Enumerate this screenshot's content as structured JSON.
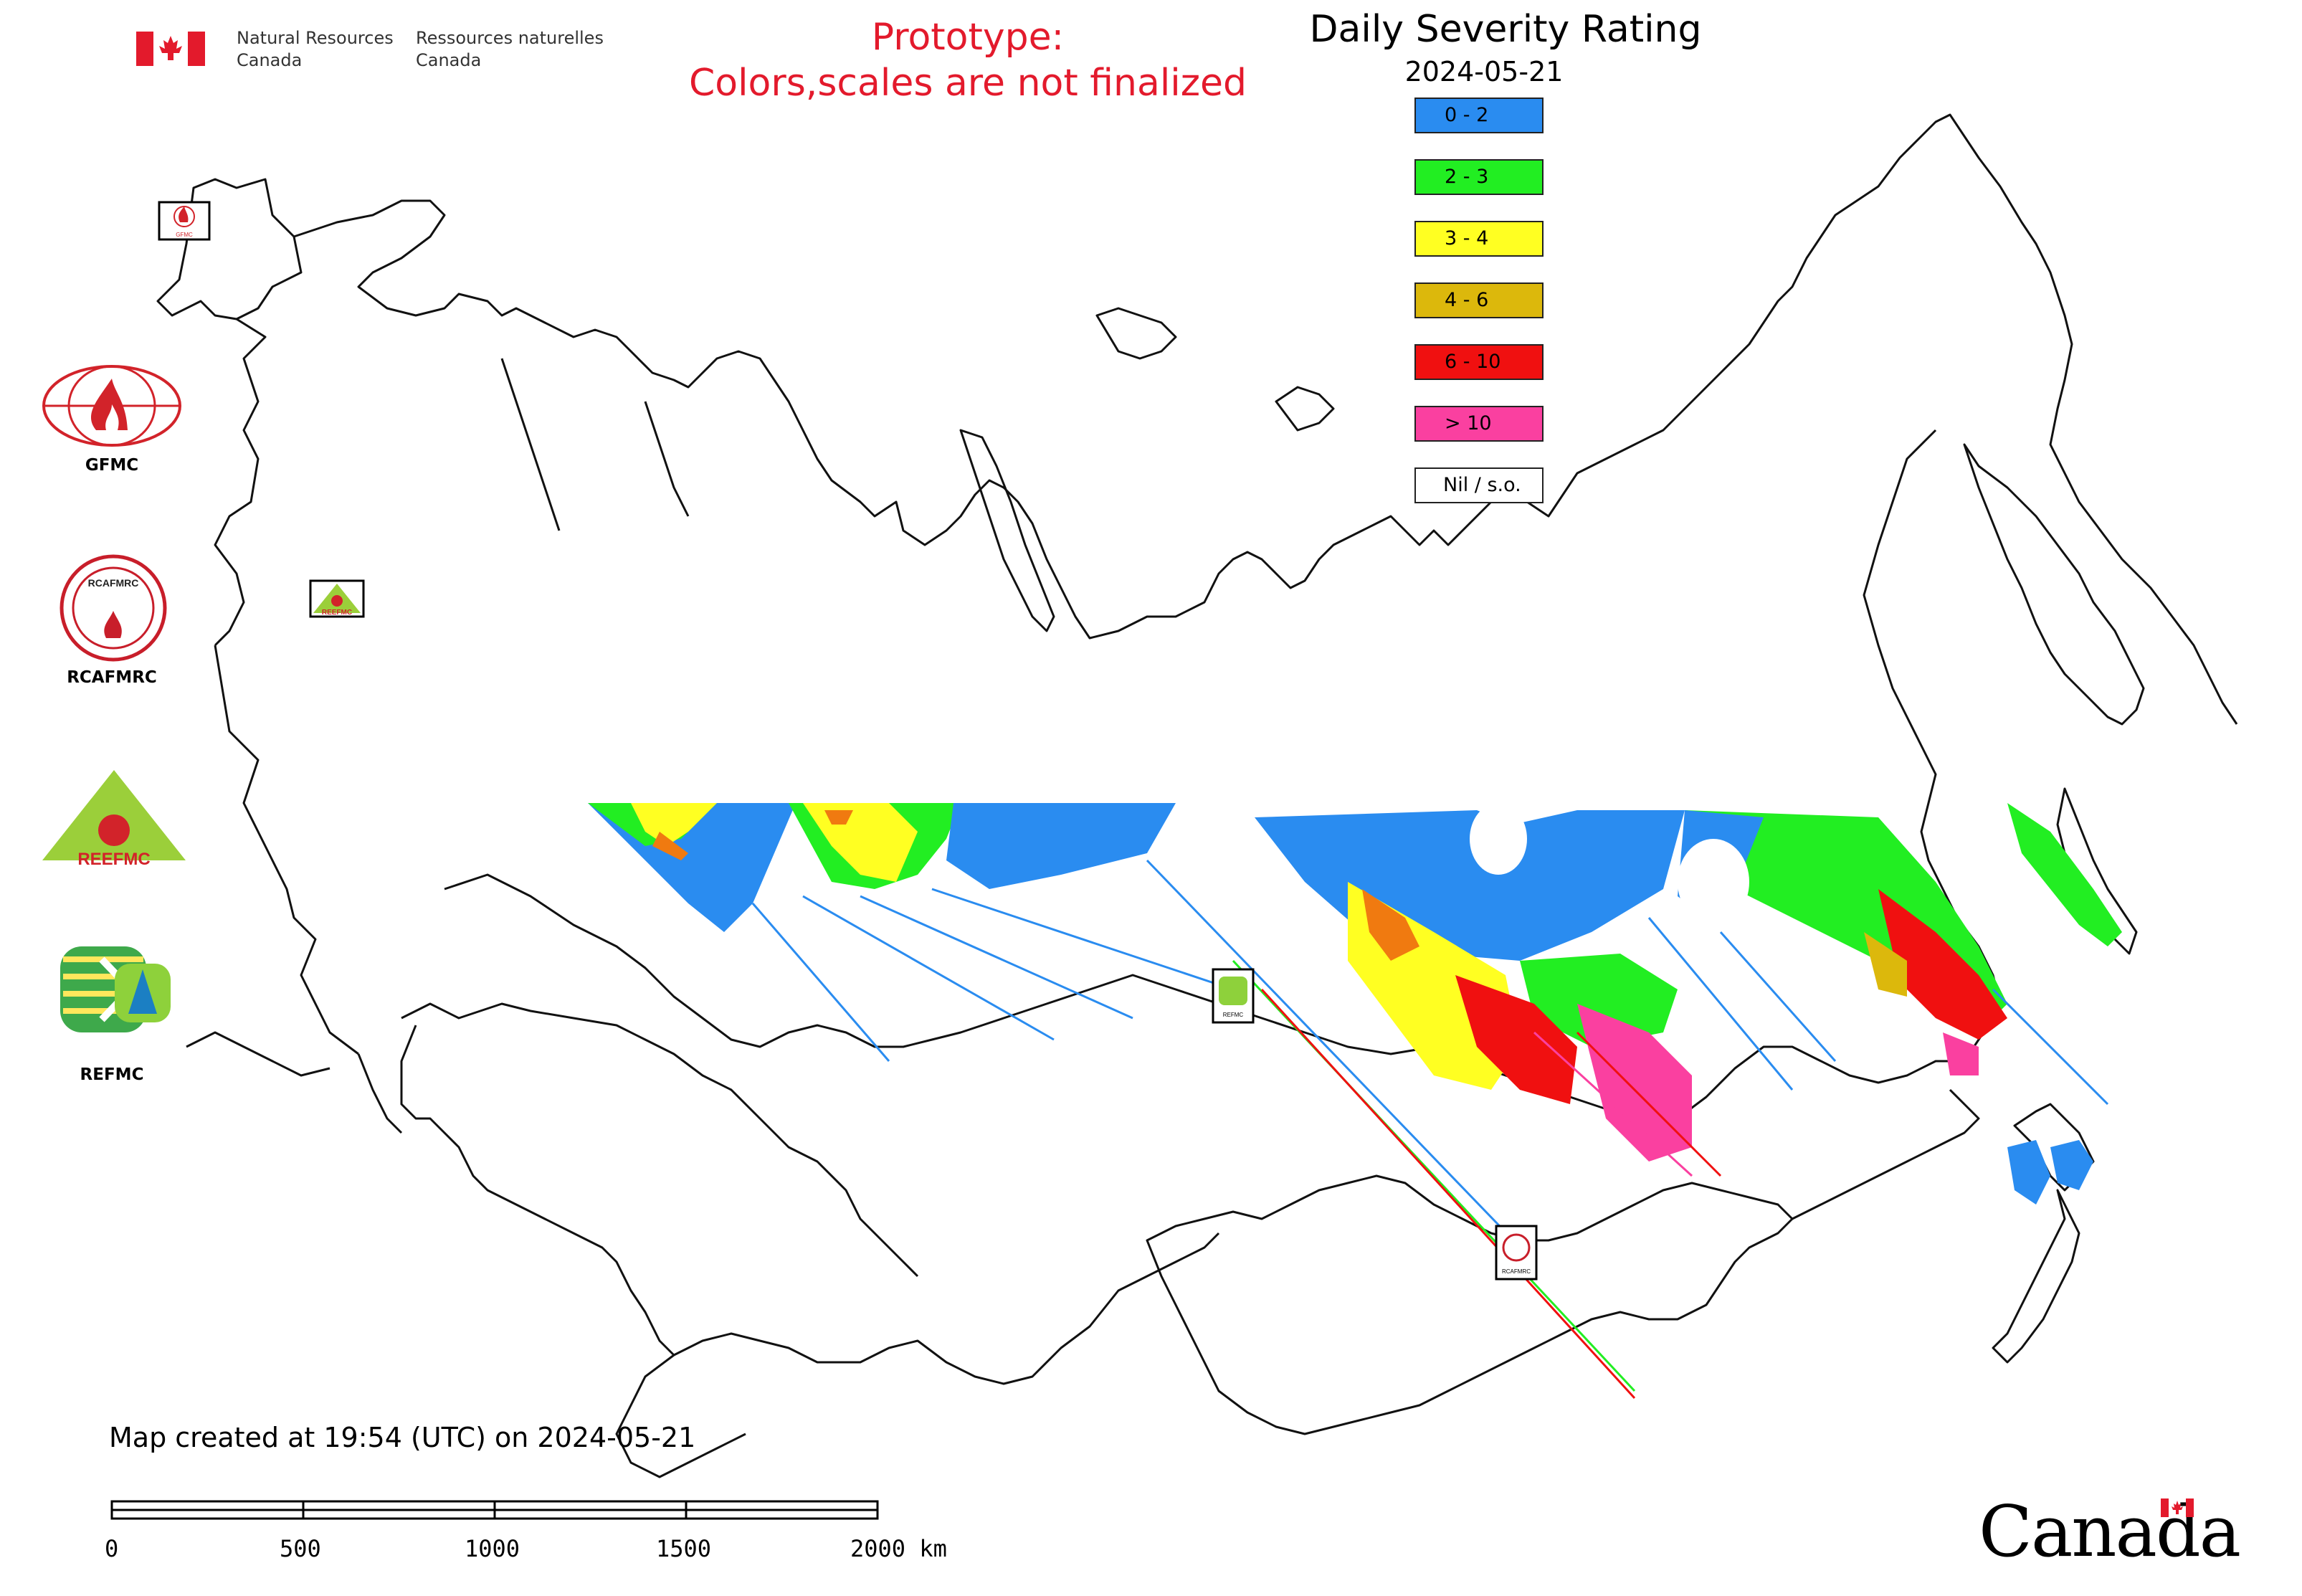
{
  "header": {
    "agency_en_line1": "Natural Resources",
    "agency_en_line2": "Canada",
    "agency_fr_line1": "Ressources naturelles",
    "agency_fr_line2": "Canada"
  },
  "prototype_note": {
    "line1": "Prototype:",
    "line2": "Colors,scales are not finalized"
  },
  "legend": {
    "title": "Daily Severity Rating",
    "date": "2024-05-21",
    "classes": [
      {
        "label": "0 - 2",
        "color": "#2a8cf0"
      },
      {
        "label": "2 - 3",
        "color": "#22ee22"
      },
      {
        "label": "3 - 4",
        "color": "#ffff22"
      },
      {
        "label": "4 - 6",
        "color": "#dcb80c"
      },
      {
        "label": "6 - 10",
        "color": "#f01010"
      },
      {
        "label": "> 10",
        "color": "#fa40a0"
      },
      {
        "label": "Nil / s.o.",
        "color": "#ffffff"
      }
    ]
  },
  "side_logos": [
    {
      "label": "GFMC",
      "icon": "gfmc-logo"
    },
    {
      "label": "RCAFMRC",
      "icon": "rcafmrc-logo"
    },
    {
      "label": "REEFMC",
      "icon": "reefmc-logo"
    },
    {
      "label": "REFMC",
      "icon": "refmc-logo"
    }
  ],
  "map_logo_texts": {
    "gfmc": "GFMC",
    "reefmc": "REEFMC",
    "refmc": "REFMC",
    "rcafmrc": "RCAFMRC",
    "rcafmrc_ring": "RCAFMRC"
  },
  "footer": {
    "map_created": "Map created at 19:54 (UTC) on 2024-05-21",
    "scale_labels": [
      "0",
      "500",
      "1000",
      "1500",
      "2000 km"
    ],
    "wordmark": "Canada"
  }
}
